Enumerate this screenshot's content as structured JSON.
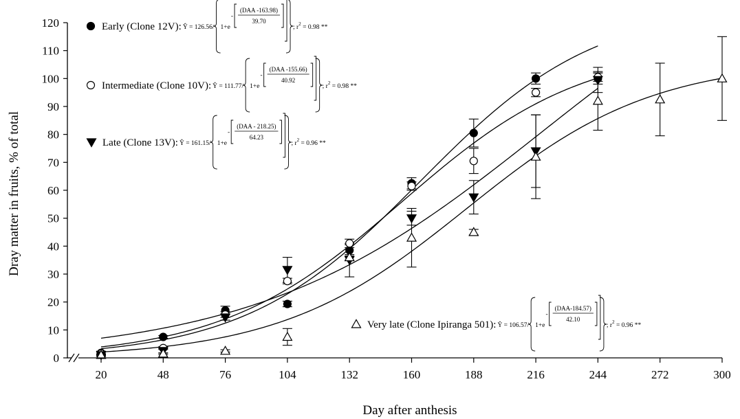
{
  "chart_data": {
    "type": "scatter",
    "title": "",
    "xlabel": "Day after anthesis",
    "ylabel": "Dray matter in fruits, % of total",
    "x_ticks": [
      20,
      48,
      76,
      104,
      132,
      160,
      188,
      216,
      244,
      272,
      300
    ],
    "y_ticks": [
      0,
      10,
      20,
      30,
      40,
      50,
      60,
      70,
      80,
      90,
      100,
      110,
      120
    ],
    "xlim": [
      20,
      300
    ],
    "ylim": [
      0,
      120
    ],
    "axis_break": "x",
    "grid": false,
    "legend_position": "left",
    "series": [
      {
        "name": "Early (Clone 12V)",
        "marker": "filled-circle",
        "equation": {
          "lhs": "Ŷ = 126.56/",
          "base": "1+e",
          "neg": "-",
          "num": "(DAA -163.98)",
          "den": "39.70",
          "r2_prefix": "; r",
          "r2_exp": "2",
          "r2_value": " = 0.98 **"
        },
        "fit": {
          "a": 126.56,
          "b": 163.98,
          "c": 39.7
        },
        "points": [
          {
            "x": 20,
            "y": 1.8,
            "err": 0.6
          },
          {
            "x": 48,
            "y": 7.5,
            "err": 0.5
          },
          {
            "x": 76,
            "y": 17.0,
            "err": 1.5
          },
          {
            "x": 104,
            "y": 19.3,
            "err": 1.0
          },
          {
            "x": 132,
            "y": 38.5,
            "err": 2.0
          },
          {
            "x": 160,
            "y": 62.5,
            "err": 2.0
          },
          {
            "x": 188,
            "y": 80.5,
            "err": 5.0
          },
          {
            "x": 216,
            "y": 100.0,
            "err": 2.0
          },
          {
            "x": 244,
            "y": 100.0,
            "err": 2.0
          }
        ]
      },
      {
        "name": "Intermediate (Clone 10V)",
        "marker": "open-circle",
        "equation": {
          "lhs": "Ŷ = 111.77/",
          "base": "1+e",
          "neg": "-",
          "num": "(DAA -155.66)",
          "den": "40.92",
          "r2_prefix": "; r",
          "r2_exp": "2",
          "r2_value": " = 0.98 **"
        },
        "fit": {
          "a": 111.77,
          "b": 155.66,
          "c": 40.92
        },
        "points": [
          {
            "x": 20,
            "y": 1.5,
            "err": 0.5
          },
          {
            "x": 48,
            "y": 3.5,
            "err": 0.5
          },
          {
            "x": 76,
            "y": 15.5,
            "err": 1.0
          },
          {
            "x": 104,
            "y": 27.5,
            "err": 1.0
          },
          {
            "x": 132,
            "y": 41.0,
            "err": 1.5
          },
          {
            "x": 160,
            "y": 61.5,
            "err": 1.5
          },
          {
            "x": 188,
            "y": 70.5,
            "err": 4.5
          },
          {
            "x": 216,
            "y": 95.0,
            "err": 1.5
          },
          {
            "x": 244,
            "y": 100.5,
            "err": 1.5
          }
        ]
      },
      {
        "name": "Late (Clone 13V)",
        "marker": "filled-triangle-down",
        "equation": {
          "lhs": "Ŷ = 161.15/",
          "base": "1+e",
          "neg": "-",
          "num": "(DAA - 218.25)",
          "den": "64.23",
          "r2_prefix": "; r",
          "r2_exp": "2",
          "r2_value": " = 0.96 **"
        },
        "fit": {
          "a": 161.15,
          "b": 218.25,
          "c": 64.23
        },
        "points": [
          {
            "x": 20,
            "y": 1.0,
            "err": 0.5
          },
          {
            "x": 48,
            "y": 2.5,
            "err": 0.8
          },
          {
            "x": 76,
            "y": 14.5,
            "err": 1.0
          },
          {
            "x": 104,
            "y": 31.5,
            "err": 4.5
          },
          {
            "x": 132,
            "y": 35.0,
            "err": 6.0
          },
          {
            "x": 160,
            "y": 50.0,
            "err": 2.5
          },
          {
            "x": 188,
            "y": 57.5,
            "err": 6.0
          },
          {
            "x": 216,
            "y": 74.0,
            "err": 13.0
          },
          {
            "x": 244,
            "y": 99.5,
            "err": 4.5
          }
        ]
      },
      {
        "name": "Very late (Clone Ipiranga 501)",
        "marker": "open-triangle-up",
        "equation": {
          "lhs": "Ŷ = 106.57/",
          "base": "1+e",
          "neg": "-",
          "num": "(DAA-184.57)",
          "den": "42.10",
          "r2_prefix": "; r",
          "r2_exp": "2",
          "r2_value": " = 0.96 **"
        },
        "fit": {
          "a": 106.57,
          "b": 184.57,
          "c": 42.1
        },
        "points": [
          {
            "x": 20,
            "y": 1.0,
            "err": 0.3
          },
          {
            "x": 48,
            "y": 1.5,
            "err": 0.3
          },
          {
            "x": 76,
            "y": 2.5,
            "err": 0.4
          },
          {
            "x": 104,
            "y": 7.5,
            "err": 3.0
          },
          {
            "x": 132,
            "y": 36.0,
            "err": 1.0
          },
          {
            "x": 160,
            "y": 43.0,
            "err": 10.5
          },
          {
            "x": 188,
            "y": 45.0,
            "err": 1.0
          },
          {
            "x": 216,
            "y": 72.0,
            "err": 15.0
          },
          {
            "x": 244,
            "y": 92.0,
            "err": 10.5
          },
          {
            "x": 272,
            "y": 92.5,
            "err": 13.0
          },
          {
            "x": 300,
            "y": 100.0,
            "err": 15.0
          }
        ]
      }
    ]
  }
}
